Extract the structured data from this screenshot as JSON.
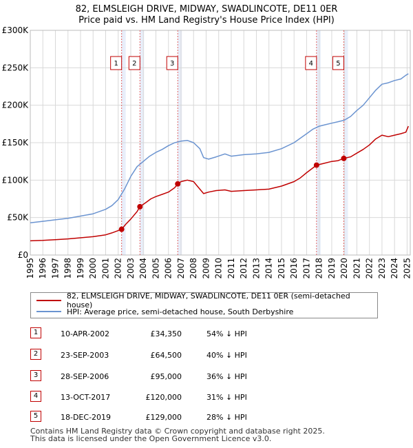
{
  "title": "82, ELMSLEIGH DRIVE, MIDWAY, SWADLINCOTE, DE11 0ER",
  "subtitle": "Price paid vs. HM Land Registry's House Price Index (HPI)",
  "colors": {
    "property": "#c00000",
    "hpi": "#6a93d0",
    "grid": "#d8d8d8",
    "marker_line": "#e06060",
    "shade": "#e8eefa"
  },
  "chart_data": {
    "type": "line",
    "ylim": [
      0,
      300000
    ],
    "xlim": [
      1995.0,
      2025.25
    ],
    "y_ticks": [
      {
        "value": 0,
        "label": "£0"
      },
      {
        "value": 50000,
        "label": "£50K"
      },
      {
        "value": 100000,
        "label": "£100K"
      },
      {
        "value": 150000,
        "label": "£150K"
      },
      {
        "value": 200000,
        "label": "£200K"
      },
      {
        "value": 250000,
        "label": "£250K"
      },
      {
        "value": 300000,
        "label": "£300K"
      }
    ],
    "x_ticks": [
      "1995",
      "1996",
      "1997",
      "1998",
      "1999",
      "2000",
      "2001",
      "2002",
      "2003",
      "2004",
      "2005",
      "2006",
      "2007",
      "2008",
      "2009",
      "2010",
      "2011",
      "2012",
      "2013",
      "2014",
      "2015",
      "2016",
      "2017",
      "2018",
      "2019",
      "2020",
      "2021",
      "2022",
      "2023",
      "2024",
      "2025"
    ],
    "series": [
      {
        "name": "82, ELMSLEIGH DRIVE, MIDWAY, SWADLINCOTE, DE11 0ER (semi-detached house)",
        "key": "property",
        "x": [
          1995.0,
          1996.0,
          1997.0,
          1998.0,
          1999.0,
          2000.0,
          2001.0,
          2001.5,
          2002.27,
          2002.6,
          2003.0,
          2003.5,
          2003.73,
          2004.2,
          2004.6,
          2005.0,
          2005.5,
          2006.0,
          2006.5,
          2006.74,
          2007.0,
          2007.5,
          2008.0,
          2008.5,
          2008.8,
          2009.2,
          2009.8,
          2010.5,
          2011.0,
          2012.0,
          2013.0,
          2014.0,
          2015.0,
          2016.0,
          2016.5,
          2017.0,
          2017.79,
          2018.3,
          2019.0,
          2019.5,
          2019.96,
          2020.5,
          2021.0,
          2021.5,
          2022.0,
          2022.5,
          2023.0,
          2023.5,
          2024.0,
          2024.5,
          2024.9,
          2025.1
        ],
        "y": [
          19000,
          19500,
          20500,
          21500,
          23000,
          24500,
          27000,
          29500,
          34350,
          41000,
          48000,
          58000,
          64500,
          70000,
          75000,
          78000,
          81000,
          84000,
          90000,
          95000,
          98000,
          100000,
          98000,
          88000,
          82000,
          84000,
          86000,
          87000,
          85000,
          86000,
          87000,
          88000,
          92000,
          98000,
          103000,
          110000,
          120000,
          122000,
          125000,
          126000,
          129000,
          131000,
          136000,
          141000,
          147000,
          155000,
          160000,
          158000,
          160000,
          162000,
          164000,
          172000
        ]
      },
      {
        "name": "HPI: Average price, semi-detached house, South Derbyshire",
        "key": "hpi",
        "x": [
          1995.0,
          1996.0,
          1997.0,
          1998.0,
          1999.0,
          2000.0,
          2001.0,
          2001.5,
          2002.0,
          2002.5,
          2003.0,
          2003.5,
          2004.0,
          2004.5,
          2005.0,
          2005.5,
          2006.0,
          2006.5,
          2007.0,
          2007.5,
          2008.0,
          2008.5,
          2008.8,
          2009.2,
          2009.8,
          2010.5,
          2011.0,
          2012.0,
          2013.0,
          2014.0,
          2015.0,
          2016.0,
          2016.5,
          2017.0,
          2017.5,
          2018.0,
          2018.5,
          2019.0,
          2019.5,
          2020.0,
          2020.5,
          2021.0,
          2021.5,
          2022.0,
          2022.5,
          2023.0,
          2023.5,
          2024.0,
          2024.5,
          2024.9,
          2025.1
        ],
        "y": [
          43000,
          45000,
          47000,
          49000,
          52000,
          55000,
          61000,
          66000,
          74000,
          88000,
          105000,
          118000,
          125000,
          132000,
          137000,
          141000,
          146000,
          150000,
          152000,
          153000,
          150000,
          142000,
          130000,
          128000,
          131000,
          135000,
          132000,
          134000,
          135000,
          137000,
          142000,
          150000,
          156000,
          162000,
          168000,
          172000,
          174000,
          176000,
          178000,
          180000,
          185000,
          193000,
          200000,
          210000,
          220000,
          228000,
          230000,
          233000,
          235000,
          240000,
          242000
        ]
      }
    ],
    "markers": [
      {
        "label": "1",
        "x": 2002.27,
        "y": 34350
      },
      {
        "label": "2",
        "x": 2003.73,
        "y": 64500
      },
      {
        "label": "3",
        "x": 2006.74,
        "y": 95000
      },
      {
        "label": "4",
        "x": 2017.79,
        "y": 120000
      },
      {
        "label": "5",
        "x": 2019.96,
        "y": 129000
      }
    ]
  },
  "legend": {
    "property": "82, ELMSLEIGH DRIVE, MIDWAY, SWADLINCOTE, DE11 0ER (semi-detached house)",
    "hpi": "HPI: Average price, semi-detached house, South Derbyshire"
  },
  "sales": [
    {
      "num": "1",
      "date": "10-APR-2002",
      "price": "£34,350",
      "hpi": "54% ↓ HPI"
    },
    {
      "num": "2",
      "date": "23-SEP-2003",
      "price": "£64,500",
      "hpi": "40% ↓ HPI"
    },
    {
      "num": "3",
      "date": "28-SEP-2006",
      "price": "£95,000",
      "hpi": "36% ↓ HPI"
    },
    {
      "num": "4",
      "date": "13-OCT-2017",
      "price": "£120,000",
      "hpi": "31% ↓ HPI"
    },
    {
      "num": "5",
      "date": "18-DEC-2019",
      "price": "£129,000",
      "hpi": "28% ↓ HPI"
    }
  ],
  "footer": {
    "line1": "Contains HM Land Registry data © Crown copyright and database right 2025.",
    "line2": "This data is licensed under the Open Government Licence v3.0."
  }
}
